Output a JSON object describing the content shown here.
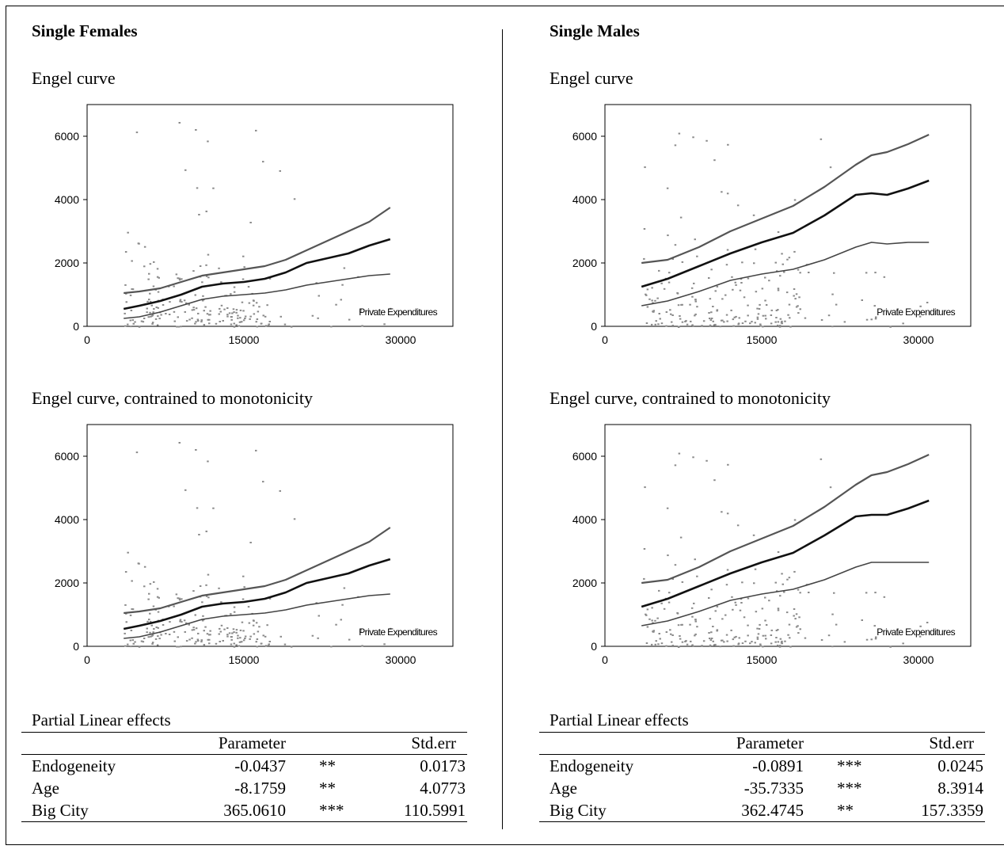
{
  "panels": [
    {
      "heading": "Single Females",
      "engel_title": "Engel curve",
      "mono_title": "Engel curve, contrained to monotonicity",
      "table_title": "Partial Linear effects",
      "table_headers": [
        "",
        "Parameter",
        "",
        "Std.err"
      ],
      "rows": [
        {
          "name": "Endogeneity",
          "param": "-0.0437",
          "sig": "**",
          "se": "0.0173"
        },
        {
          "name": "Age",
          "param": "-8.1759",
          "sig": "**",
          "se": "4.0773"
        },
        {
          "name": "Big City",
          "param": "365.0610",
          "sig": "***",
          "se": "110.5991"
        }
      ]
    },
    {
      "heading": "Single Males",
      "engel_title": "Engel curve",
      "mono_title": "Engel curve, contrained to monotonicity",
      "table_title": "Partial Linear effects",
      "table_headers": [
        "",
        "Parameter",
        "",
        "Std.err"
      ],
      "rows": [
        {
          "name": "Endogeneity",
          "param": "-0.0891",
          "sig": "***",
          "se": "0.0245"
        },
        {
          "name": "Age",
          "param": "-35.7335",
          "sig": "***",
          "se": "8.3914"
        },
        {
          "name": "Big City",
          "param": "362.4745",
          "sig": "**",
          "se": "157.3359"
        }
      ]
    }
  ],
  "chart_data": [
    {
      "type": "line",
      "panel": "Single Females",
      "title": "Engel curve",
      "annotation": "Private Expenditures",
      "xlim": [
        0,
        35000
      ],
      "ylim": [
        0,
        7000
      ],
      "xticks": [
        0,
        15000,
        30000
      ],
      "yticks": [
        0,
        2000,
        4000,
        6000
      ],
      "x": [
        3500,
        5000,
        7000,
        9000,
        11000,
        13000,
        15000,
        17000,
        19000,
        21000,
        23000,
        25000,
        27000,
        29000
      ],
      "series": [
        {
          "values": [
            1050,
            1100,
            1200,
            1400,
            1600,
            1700,
            1800,
            1900,
            2100,
            2400,
            2700,
            3000,
            3300,
            3750
          ]
        },
        {
          "values": [
            550,
            650,
            800,
            1000,
            1250,
            1350,
            1400,
            1500,
            1700,
            2000,
            2150,
            2300,
            2550,
            2750
          ]
        },
        {
          "values": [
            250,
            300,
            450,
            650,
            850,
            950,
            1000,
            1050,
            1150,
            1300,
            1400,
            1500,
            1600,
            1650
          ]
        }
      ],
      "scatter_note": "scattered household observations"
    },
    {
      "type": "line",
      "panel": "Single Females",
      "title": "Engel curve, contrained to monotonicity",
      "annotation": "Private Expenditures",
      "xlim": [
        0,
        35000
      ],
      "ylim": [
        0,
        7000
      ],
      "xticks": [
        0,
        15000,
        30000
      ],
      "yticks": [
        0,
        2000,
        4000,
        6000
      ],
      "x": [
        3500,
        5000,
        7000,
        9000,
        11000,
        13000,
        15000,
        17000,
        19000,
        21000,
        23000,
        25000,
        27000,
        29000
      ],
      "series": [
        {
          "values": [
            1050,
            1100,
            1200,
            1400,
            1600,
            1700,
            1800,
            1900,
            2100,
            2400,
            2700,
            3000,
            3300,
            3750
          ]
        },
        {
          "values": [
            550,
            650,
            800,
            1000,
            1250,
            1350,
            1400,
            1500,
            1700,
            2000,
            2150,
            2300,
            2550,
            2750
          ]
        },
        {
          "values": [
            250,
            300,
            450,
            650,
            850,
            950,
            1000,
            1050,
            1150,
            1300,
            1400,
            1500,
            1600,
            1650
          ]
        }
      ]
    },
    {
      "type": "line",
      "panel": "Single Males",
      "title": "Engel curve",
      "annotation": "Private Expenditures",
      "xlim": [
        0,
        35000
      ],
      "ylim": [
        0,
        7000
      ],
      "xticks": [
        0,
        15000,
        30000
      ],
      "yticks": [
        0,
        2000,
        4000,
        6000
      ],
      "x": [
        3500,
        6000,
        9000,
        12000,
        15000,
        18000,
        21000,
        24000,
        25500,
        27000,
        29000,
        31000
      ],
      "series": [
        {
          "values": [
            2000,
            2100,
            2500,
            3000,
            3400,
            3800,
            4400,
            5100,
            5400,
            5500,
            5750,
            6050
          ]
        },
        {
          "values": [
            1250,
            1500,
            1900,
            2300,
            2650,
            2950,
            3500,
            4150,
            4200,
            4150,
            4350,
            4600
          ]
        },
        {
          "values": [
            650,
            800,
            1100,
            1450,
            1650,
            1800,
            2100,
            2500,
            2650,
            2600,
            2650,
            2650
          ]
        }
      ]
    },
    {
      "type": "line",
      "panel": "Single Males",
      "title": "Engel curve, contrained to monotonicity",
      "annotation": "Private Expenditures",
      "xlim": [
        0,
        35000
      ],
      "ylim": [
        0,
        7000
      ],
      "xticks": [
        0,
        15000,
        30000
      ],
      "yticks": [
        0,
        2000,
        4000,
        6000
      ],
      "x": [
        3500,
        6000,
        9000,
        12000,
        15000,
        18000,
        21000,
        24000,
        25500,
        27000,
        29000,
        31000
      ],
      "series": [
        {
          "values": [
            2000,
            2100,
            2500,
            3000,
            3400,
            3800,
            4400,
            5100,
            5400,
            5500,
            5750,
            6050
          ]
        },
        {
          "values": [
            1250,
            1500,
            1900,
            2300,
            2650,
            2950,
            3500,
            4100,
            4150,
            4150,
            4350,
            4600
          ]
        },
        {
          "values": [
            650,
            800,
            1100,
            1450,
            1650,
            1800,
            2100,
            2500,
            2650,
            2650,
            2650,
            2650
          ]
        }
      ]
    }
  ]
}
